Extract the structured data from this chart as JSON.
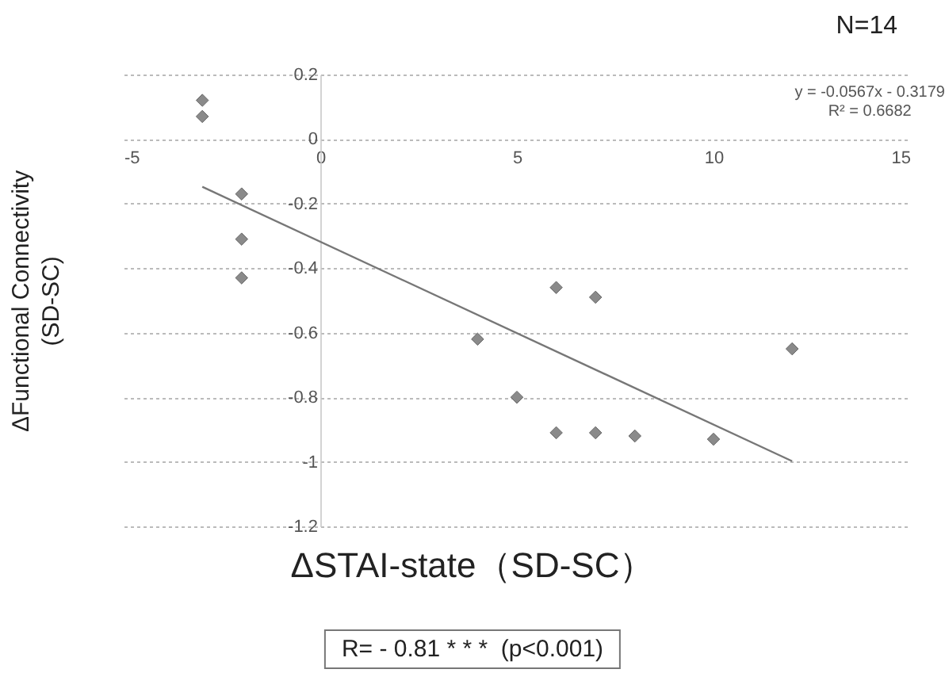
{
  "chart_data": {
    "type": "scatter",
    "xlabel": "ΔSTAI-state（SD-SC）",
    "ylabel": "ΔFunctional Connectivity\n(SD-SC)",
    "annotations": [
      "N=14",
      "y = -0.0567x - 0.3179\nR² = 0.6682",
      "R= - 0.81 * * *  (p<0.001)"
    ],
    "series": [
      {
        "color": "#8a8a8a",
        "x": [
          -3,
          -3,
          -2,
          -2,
          -2,
          4,
          5,
          6,
          6,
          7,
          7,
          8,
          10,
          12
        ],
        "values": [
          0.12,
          0.07,
          -0.17,
          -0.31,
          -0.43,
          -0.62,
          -0.8,
          -0.46,
          -0.91,
          -0.49,
          -0.91,
          -0.92,
          -0.93,
          -0.65
        ]
      },
      {
        "type": "line",
        "marker": "none",
        "color": "#777777",
        "x": [
          -3,
          12
        ],
        "values": [
          -0.148,
          -0.998
        ]
      }
    ],
    "xlim": [
      -5,
      15
    ],
    "xticks": [
      -5,
      0,
      5,
      10,
      15
    ],
    "ylim": [
      -1.2,
      0.2
    ],
    "yticks": [
      -1.2,
      -1,
      -0.8,
      -0.6,
      -0.4,
      -0.2,
      0,
      0.2
    ],
    "grid": "y",
    "marker": "diamond"
  }
}
